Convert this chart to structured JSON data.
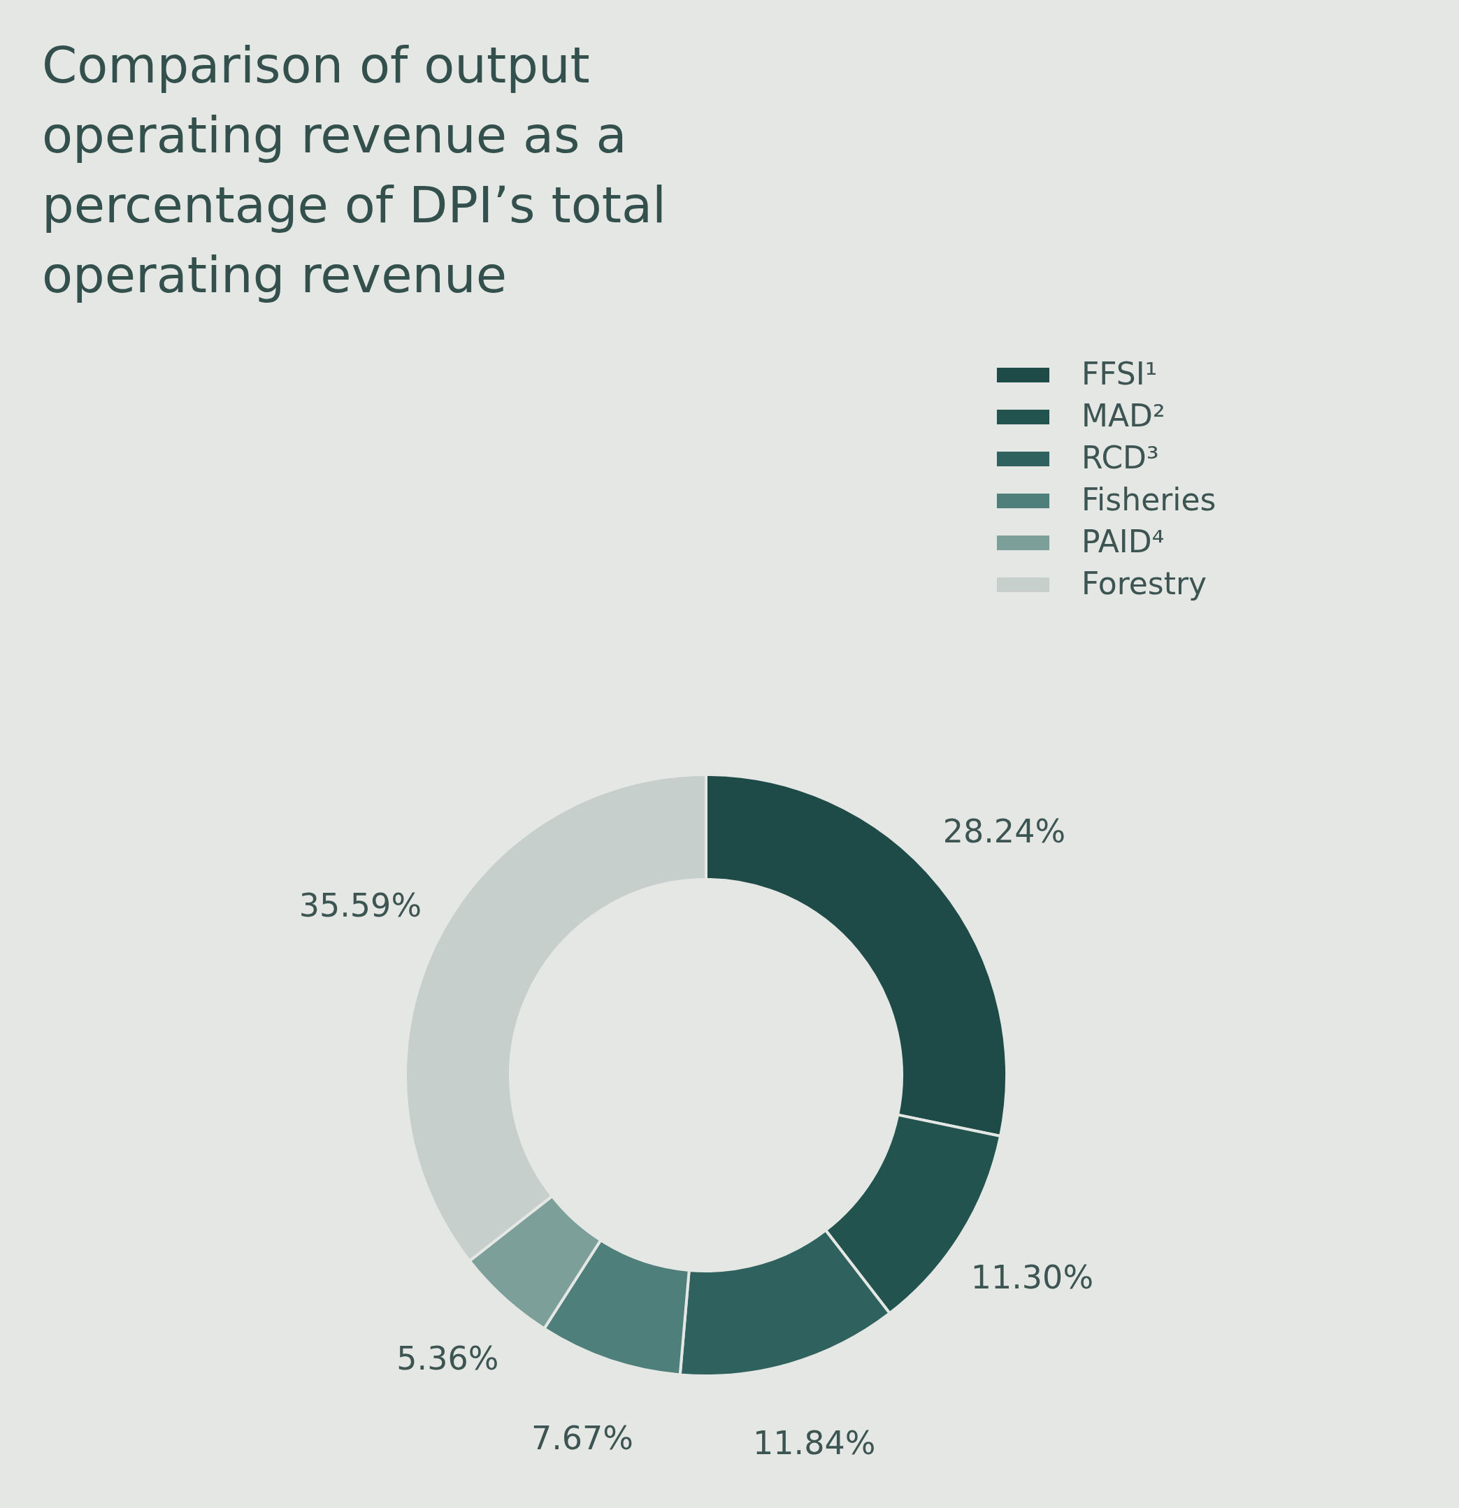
{
  "chart_data": {
    "type": "donut",
    "title": "Comparison of output operating revenue as a percentage of DPI’s total operating revenue",
    "categories": [
      "FFSI¹",
      "MAD²",
      "RCD³",
      "Fisheries",
      "PAID⁴",
      "Forestry"
    ],
    "values": [
      28.24,
      11.3,
      11.84,
      7.67,
      5.36,
      35.59
    ],
    "value_labels": [
      "28.24%",
      "11.30%",
      "11.84%",
      "7.67%",
      "5.36%",
      "35.59%"
    ],
    "colors": [
      "#1e4b48",
      "#23534f",
      "#2f625e",
      "#4f7f7a",
      "#7c9f9a",
      "#c6cfcb"
    ],
    "legend": "top right"
  }
}
